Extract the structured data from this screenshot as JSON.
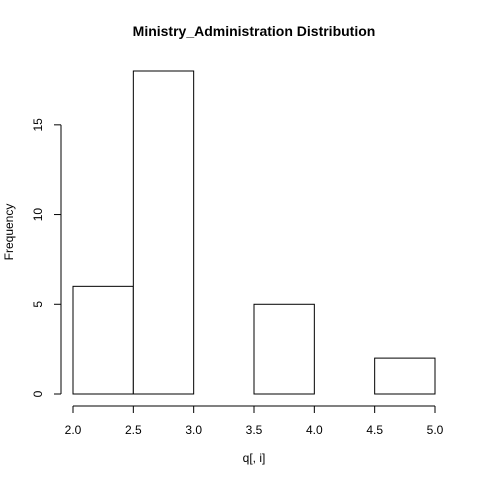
{
  "chart_data": {
    "type": "bar",
    "title": "Ministry_Administration Distribution",
    "xlabel": "q[, i]",
    "ylabel": "Frequency",
    "bins": [
      {
        "start": 2.0,
        "end": 2.5,
        "count": 6
      },
      {
        "start": 2.5,
        "end": 3.0,
        "count": 18
      },
      {
        "start": 3.0,
        "end": 3.5,
        "count": 0
      },
      {
        "start": 3.5,
        "end": 4.0,
        "count": 5
      },
      {
        "start": 4.0,
        "end": 4.5,
        "count": 0
      },
      {
        "start": 4.5,
        "end": 5.0,
        "count": 2
      }
    ],
    "x_ticks": [
      "2.0",
      "2.5",
      "3.0",
      "3.5",
      "4.0",
      "4.5",
      "5.0"
    ],
    "y_ticks": [
      "0",
      "5",
      "10",
      "15"
    ],
    "xlim": [
      2.0,
      5.0
    ],
    "ylim": [
      0,
      18
    ],
    "grid": false,
    "colors": {
      "bar_fill": "#ffffff",
      "bar_stroke": "#000000",
      "axis": "#000000"
    }
  }
}
